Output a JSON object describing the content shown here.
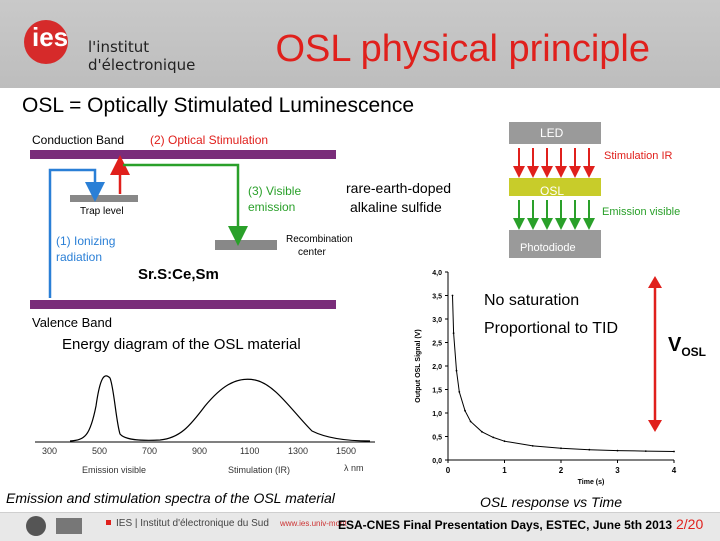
{
  "header": {
    "logo_text": "ies",
    "institute_line1": "l'institut",
    "institute_line2": "d'électronique",
    "title": "OSL physical principle"
  },
  "subtitle": "OSL = Optically Stimulated Luminescence",
  "energy_diagram": {
    "conduction_band": "Conduction Band",
    "optical_stimulation": "(2) Optical Stimulation",
    "visible_emission_1": "(3) Visible",
    "visible_emission_2": "emission",
    "trap_level": "Trap level",
    "ionizing_1": "(1) Ionizing",
    "ionizing_2": "radiation",
    "recombination_1": "Recombination",
    "recombination_2": "center",
    "valence_band": "Valence Band",
    "material": "Sr.S:Ce,Sm",
    "caption": "Energy diagram of the OSL material",
    "note_1": "rare-earth-doped",
    "note_2": "alkaline sulfide",
    "colors": {
      "band": "#7a2d7a",
      "red": "#e0201c",
      "green": "#2aa02a",
      "blue": "#2a7fd6"
    }
  },
  "device": {
    "led": "LED",
    "stim_ir": "Stimulation IR",
    "osl": "OSL",
    "emission_visible": "Emission visible",
    "photodiode": "Photodiode"
  },
  "spectra": {
    "xticks": [
      "300",
      "500",
      "700",
      "900",
      "1100",
      "1300",
      "1500"
    ],
    "emission_label": "Emission visible",
    "stimulation_label": "Stimulation (IR)",
    "unit": "λ nm",
    "caption": "Emission and stimulation spectra of the OSL material"
  },
  "chart_data": {
    "type": "line",
    "title": "",
    "xlabel": "Time (s)",
    "ylabel": "Output OSL Signal (V)",
    "xlim": [
      0,
      4
    ],
    "ylim": [
      0,
      4
    ],
    "xticks": [
      "0",
      "1",
      "2",
      "3",
      "4"
    ],
    "yticks": [
      "0,0",
      "0,5",
      "1,0",
      "1,5",
      "2,0",
      "2,5",
      "3,0",
      "3,5",
      "4,0"
    ],
    "series": [
      {
        "x": [
          0.08,
          0.1,
          0.15,
          0.2,
          0.3,
          0.4,
          0.6,
          0.8,
          1.0,
          1.5,
          2.0,
          2.5,
          3.0,
          3.5,
          4.0
        ],
        "y": [
          3.5,
          2.7,
          1.9,
          1.45,
          1.05,
          0.82,
          0.6,
          0.48,
          0.4,
          0.3,
          0.25,
          0.22,
          0.2,
          0.19,
          0.18
        ]
      }
    ],
    "caption": "OSL response vs Time"
  },
  "osl_notes": {
    "line1": "No saturation",
    "line2": "Proportional to TID",
    "vosl_main": "V",
    "vosl_sub": "OSL"
  },
  "footer": {
    "org": "IES | Institut d'électronique du Sud",
    "url": "www.ies.univ-mont",
    "event": "ESA-CNES Final Presentation Days, ESTEC, June 5th 2013",
    "page": "2/20"
  }
}
